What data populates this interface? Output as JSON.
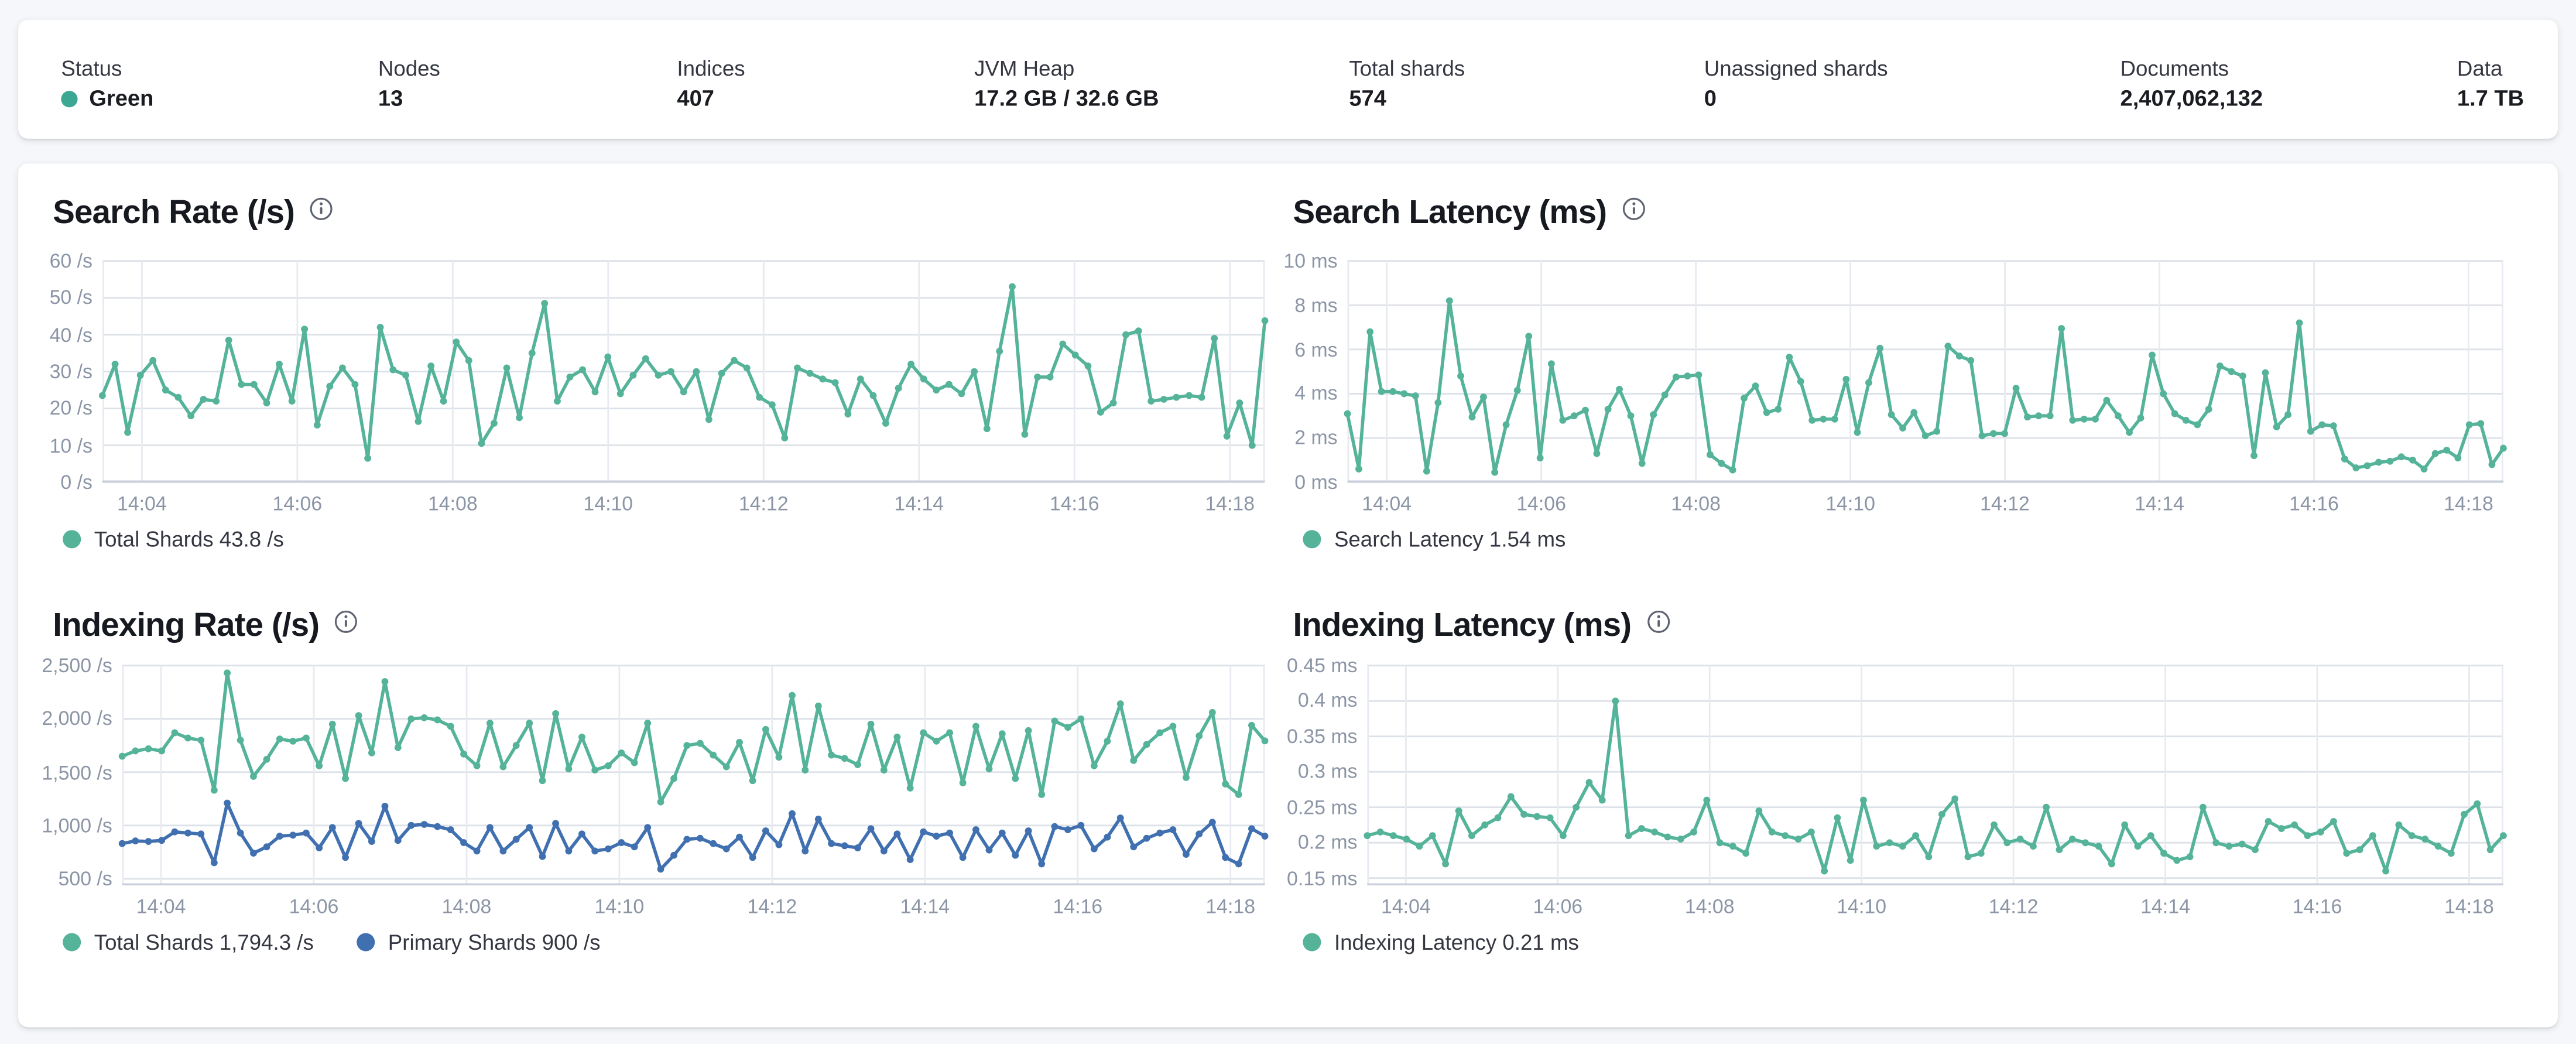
{
  "header": {
    "stats": [
      {
        "label": "Status",
        "value": "Green",
        "dot_color": "#3ca894"
      },
      {
        "label": "Nodes",
        "value": "13"
      },
      {
        "label": "Indices",
        "value": "407"
      },
      {
        "label": "JVM Heap",
        "value": "17.2 GB / 32.6 GB"
      },
      {
        "label": "Total shards",
        "value": "574"
      },
      {
        "label": "Unassigned shards",
        "value": "0"
      },
      {
        "label": "Documents",
        "value": "2,407,062,132"
      },
      {
        "label": "Data",
        "value": "1.7 TB"
      }
    ]
  },
  "colors": {
    "teal": "#54b399",
    "blue": "#4070b0",
    "axis_text": "#8b95a5"
  },
  "chart_data": [
    {
      "type": "line",
      "title": "Search Rate (/s)",
      "ylabel": "/s",
      "ylim": [
        0,
        60
      ],
      "grid": true,
      "legend_position": "bottom",
      "y_ticks": [
        {
          "v": 0,
          "label": "0 /s"
        },
        {
          "v": 10,
          "label": "10 /s"
        },
        {
          "v": 20,
          "label": "20 /s"
        },
        {
          "v": 30,
          "label": "30 /s"
        },
        {
          "v": 40,
          "label": "40 /s"
        },
        {
          "v": 50,
          "label": "50 /s"
        },
        {
          "v": 60,
          "label": "60 /s"
        }
      ],
      "x_tick_labels": [
        "14:04",
        "14:06",
        "14:08",
        "14:10",
        "14:12",
        "14:14",
        "14:16",
        "14:18"
      ],
      "legend": [
        {
          "label": "Total Shards 43.8 /s",
          "color": "#54b399"
        }
      ],
      "series": [
        {
          "name": "Total Shards",
          "color": "#54b399",
          "values": [
            23.5,
            32,
            13.5,
            29,
            33,
            25,
            23,
            18,
            22.5,
            22,
            38.5,
            26.5,
            26.5,
            21.5,
            32,
            22,
            41.5,
            15.5,
            26,
            31,
            26.5,
            6.5,
            42,
            30.5,
            29,
            16.5,
            31.5,
            22,
            38,
            33,
            10.5,
            16,
            31,
            17.5,
            35,
            48.5,
            22,
            28.5,
            30.5,
            24.5,
            34,
            24,
            29,
            33.5,
            29,
            30,
            24.5,
            30,
            17,
            29.5,
            33,
            31,
            23,
            21,
            12,
            31,
            29.5,
            28,
            27,
            18.5,
            28,
            23.5,
            16,
            25.5,
            32,
            28,
            25,
            26.5,
            24,
            30,
            14.5,
            35.5,
            53,
            13,
            28.5,
            28.5,
            37.5,
            34.5,
            31.5,
            19,
            21.5,
            40,
            41,
            22,
            22.5,
            23,
            23.5,
            23,
            39,
            12.5,
            21.5,
            10,
            43.8
          ]
        }
      ]
    },
    {
      "type": "line",
      "title": "Search Latency (ms)",
      "ylabel": "ms",
      "ylim": [
        0,
        10
      ],
      "grid": true,
      "legend_position": "bottom",
      "y_ticks": [
        {
          "v": 0,
          "label": "0 ms"
        },
        {
          "v": 2,
          "label": "2 ms"
        },
        {
          "v": 4,
          "label": "4 ms"
        },
        {
          "v": 6,
          "label": "6 ms"
        },
        {
          "v": 8,
          "label": "8 ms"
        },
        {
          "v": 10,
          "label": "10 ms"
        }
      ],
      "x_tick_labels": [
        "14:04",
        "14:06",
        "14:08",
        "14:10",
        "14:12",
        "14:14",
        "14:16",
        "14:18"
      ],
      "legend": [
        {
          "label": "Search Latency 1.54 ms",
          "color": "#54b399"
        }
      ],
      "series": [
        {
          "name": "Search Latency",
          "color": "#54b399",
          "values": [
            3.1,
            0.6,
            6.8,
            4.1,
            4.1,
            4.0,
            3.9,
            0.5,
            3.6,
            8.2,
            4.8,
            2.95,
            3.85,
            0.45,
            2.6,
            4.15,
            6.6,
            1.1,
            5.35,
            2.8,
            3.0,
            3.25,
            1.3,
            3.3,
            4.2,
            3.0,
            0.85,
            3.05,
            3.95,
            4.75,
            4.8,
            4.85,
            1.25,
            0.85,
            0.55,
            3.8,
            4.35,
            3.15,
            3.3,
            5.65,
            4.55,
            2.8,
            2.85,
            2.85,
            4.65,
            2.25,
            4.5,
            6.05,
            3.05,
            2.45,
            3.15,
            2.1,
            2.3,
            6.15,
            5.7,
            5.5,
            2.1,
            2.2,
            2.2,
            4.25,
            2.95,
            3.0,
            3.0,
            6.95,
            2.8,
            2.85,
            2.85,
            3.7,
            3.0,
            2.25,
            2.9,
            5.75,
            4.0,
            3.1,
            2.8,
            2.6,
            3.3,
            5.25,
            5.0,
            4.8,
            1.2,
            4.95,
            2.5,
            3.05,
            7.2,
            2.3,
            2.6,
            2.55,
            1.05,
            0.65,
            0.75,
            0.9,
            0.95,
            1.15,
            1.0,
            0.6,
            1.3,
            1.45,
            1.1,
            2.6,
            2.65,
            0.8,
            1.54
          ]
        }
      ]
    },
    {
      "type": "line",
      "title": "Indexing Rate (/s)",
      "ylabel": "/s",
      "ylim": [
        440,
        2500
      ],
      "grid": true,
      "legend_position": "bottom",
      "y_ticks": [
        {
          "v": 500,
          "label": "500 /s"
        },
        {
          "v": 1000,
          "label": "1,000 /s"
        },
        {
          "v": 1500,
          "label": "1,500 /s"
        },
        {
          "v": 2000,
          "label": "2,000 /s"
        },
        {
          "v": 2500,
          "label": "2,500 /s"
        }
      ],
      "x_tick_labels": [
        "14:04",
        "14:06",
        "14:08",
        "14:10",
        "14:12",
        "14:14",
        "14:16",
        "14:18"
      ],
      "legend": [
        {
          "label": "Total Shards 1,794.3 /s",
          "color": "#54b399"
        },
        {
          "label": "Primary Shards 900 /s",
          "color": "#4070b0"
        }
      ],
      "series": [
        {
          "name": "Total Shards",
          "color": "#54b399",
          "values": [
            1650,
            1700,
            1720,
            1700,
            1870,
            1820,
            1800,
            1330,
            2430,
            1800,
            1460,
            1620,
            1810,
            1790,
            1820,
            1560,
            1950,
            1440,
            2030,
            1680,
            2350,
            1730,
            2000,
            2010,
            1990,
            1930,
            1670,
            1560,
            1960,
            1550,
            1750,
            1960,
            1420,
            2050,
            1530,
            1830,
            1520,
            1560,
            1680,
            1590,
            1960,
            1220,
            1440,
            1750,
            1770,
            1660,
            1550,
            1780,
            1420,
            1900,
            1640,
            2220,
            1520,
            2120,
            1660,
            1630,
            1570,
            1950,
            1520,
            1830,
            1350,
            1870,
            1790,
            1870,
            1400,
            1930,
            1530,
            1860,
            1440,
            1890,
            1290,
            1980,
            1920,
            2000,
            1560,
            1790,
            2140,
            1610,
            1760,
            1870,
            1930,
            1450,
            1840,
            2060,
            1390,
            1290,
            1940,
            1794.3
          ]
        },
        {
          "name": "Primary Shards",
          "color": "#4070b0",
          "values": [
            830,
            855,
            850,
            860,
            940,
            930,
            920,
            650,
            1210,
            930,
            740,
            800,
            900,
            910,
            930,
            790,
            980,
            700,
            1020,
            850,
            1180,
            860,
            1000,
            1010,
            990,
            960,
            840,
            760,
            980,
            760,
            870,
            980,
            710,
            1020,
            760,
            920,
            760,
            780,
            840,
            800,
            980,
            590,
            720,
            870,
            880,
            830,
            780,
            890,
            700,
            950,
            820,
            1110,
            760,
            1060,
            830,
            810,
            790,
            970,
            760,
            920,
            680,
            940,
            900,
            930,
            700,
            960,
            770,
            930,
            720,
            950,
            640,
            990,
            960,
            1000,
            780,
            890,
            1070,
            800,
            880,
            930,
            960,
            730,
            920,
            1030,
            700,
            640,
            970,
            900
          ]
        }
      ]
    },
    {
      "type": "line",
      "title": "Indexing Latency (ms)",
      "ylabel": "ms",
      "ylim": [
        0.14,
        0.45
      ],
      "grid": true,
      "legend_position": "bottom",
      "y_ticks": [
        {
          "v": 0.15,
          "label": "0.15 ms"
        },
        {
          "v": 0.2,
          "label": "0.2 ms"
        },
        {
          "v": 0.25,
          "label": "0.25 ms"
        },
        {
          "v": 0.3,
          "label": "0.3 ms"
        },
        {
          "v": 0.35,
          "label": "0.35 ms"
        },
        {
          "v": 0.4,
          "label": "0.4 ms"
        },
        {
          "v": 0.45,
          "label": "0.45 ms"
        }
      ],
      "x_tick_labels": [
        "14:04",
        "14:06",
        "14:08",
        "14:10",
        "14:12",
        "14:14",
        "14:16",
        "14:18"
      ],
      "legend": [
        {
          "label": "Indexing Latency 0.21 ms",
          "color": "#54b399"
        }
      ],
      "series": [
        {
          "name": "Indexing Latency",
          "color": "#54b399",
          "values": [
            0.21,
            0.215,
            0.21,
            0.205,
            0.195,
            0.21,
            0.17,
            0.245,
            0.21,
            0.225,
            0.235,
            0.265,
            0.24,
            0.237,
            0.235,
            0.21,
            0.25,
            0.285,
            0.26,
            0.4,
            0.21,
            0.22,
            0.215,
            0.208,
            0.205,
            0.215,
            0.26,
            0.2,
            0.195,
            0.185,
            0.245,
            0.215,
            0.21,
            0.205,
            0.215,
            0.16,
            0.235,
            0.175,
            0.26,
            0.195,
            0.2,
            0.195,
            0.21,
            0.18,
            0.24,
            0.262,
            0.18,
            0.185,
            0.225,
            0.2,
            0.205,
            0.195,
            0.25,
            0.19,
            0.205,
            0.2,
            0.195,
            0.17,
            0.225,
            0.195,
            0.21,
            0.185,
            0.175,
            0.18,
            0.25,
            0.2,
            0.195,
            0.198,
            0.19,
            0.23,
            0.22,
            0.225,
            0.21,
            0.215,
            0.23,
            0.185,
            0.19,
            0.21,
            0.16,
            0.225,
            0.21,
            0.205,
            0.195,
            0.185,
            0.24,
            0.255,
            0.19,
            0.21
          ]
        }
      ]
    }
  ]
}
